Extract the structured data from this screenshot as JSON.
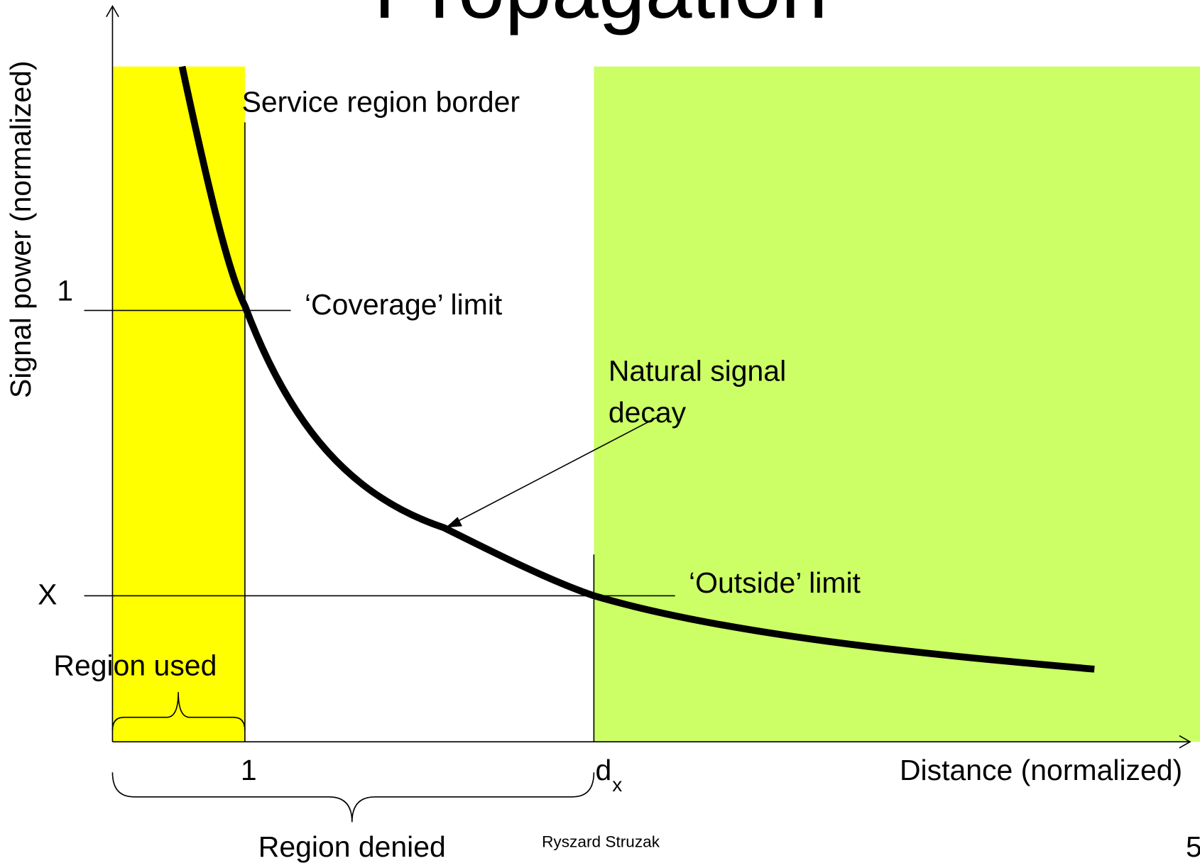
{
  "title": "Propagation",
  "y_axis_label": "Signal power (normalized)",
  "x_axis_label": "Distance (normalized)",
  "y_labels": {
    "coverage_level": "1",
    "outside_level": "X"
  },
  "x_labels": {
    "border": "1",
    "dx_main": "d",
    "dx_sub": "x"
  },
  "annotations": {
    "service_border": "Service region border",
    "coverage_limit": "‘Coverage’ limit",
    "decay": [
      "Natural signal",
      "decay"
    ],
    "outside_limit": "‘Outside’ limit",
    "region_used": "Region used",
    "region_denied": "Region denied"
  },
  "footer": {
    "author": "Ryszard Struzak",
    "page": "5"
  }
}
